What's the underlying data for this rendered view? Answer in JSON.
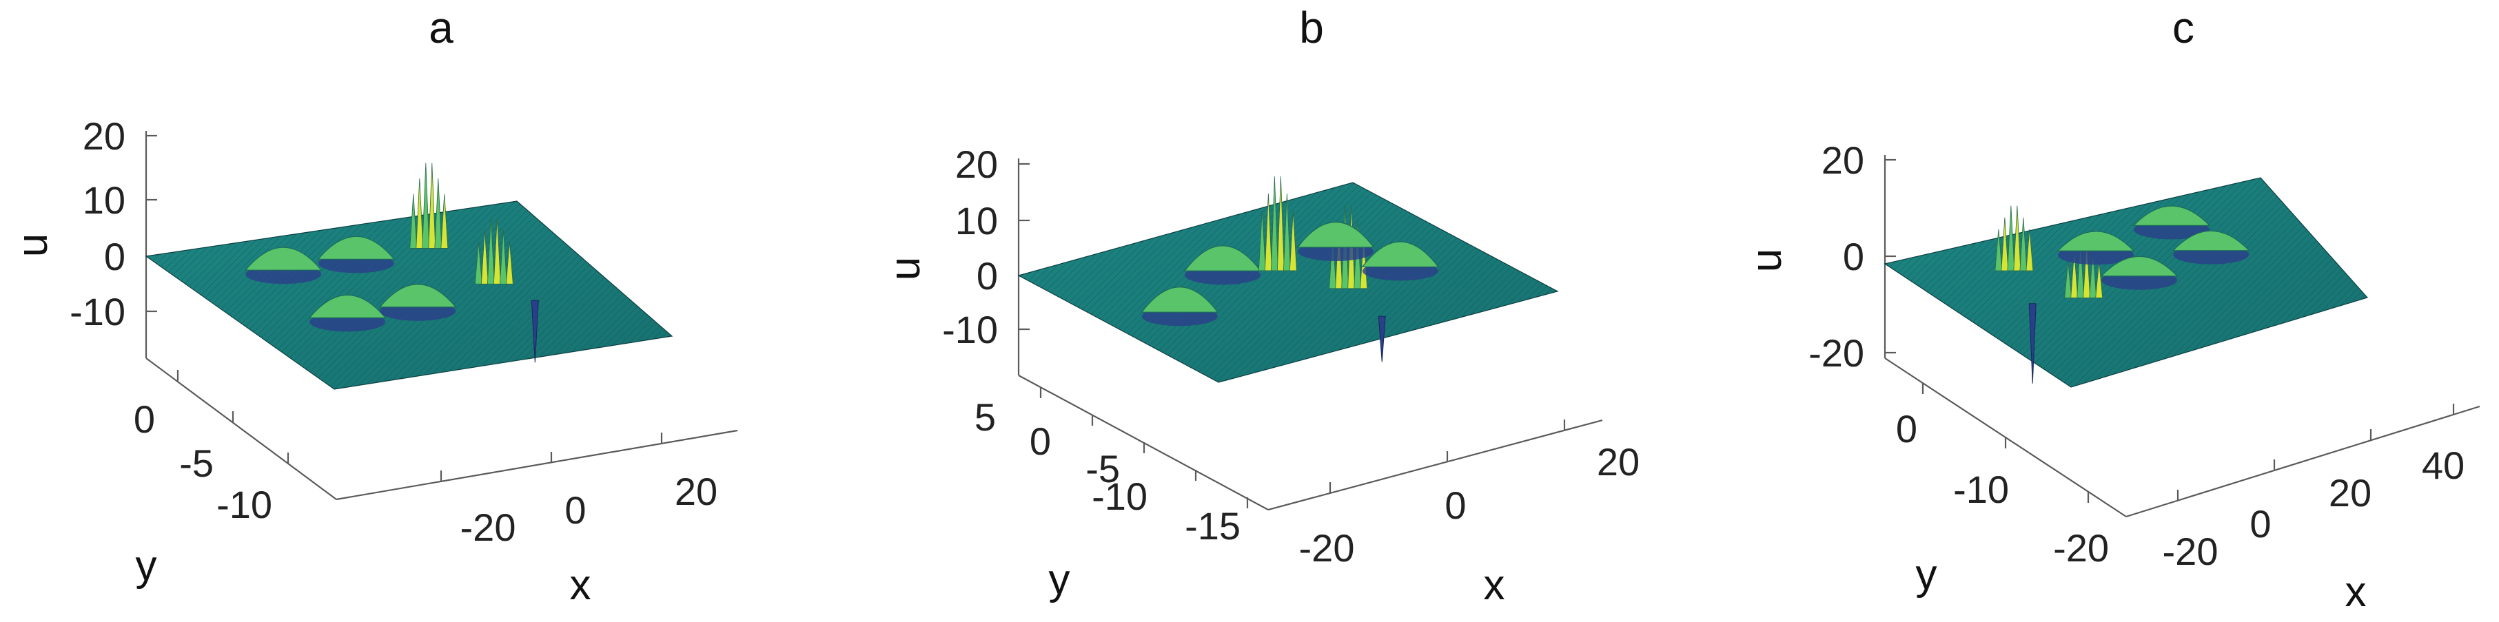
{
  "colors": {
    "plane": "#1f8a86",
    "plane_dark": "#0f5f63",
    "peak": "#d6e534",
    "mid": "#5ac46a",
    "trough": "#2a3f8a",
    "axis": "#5a5a5a"
  },
  "chart_data": [
    {
      "type": "surface",
      "title": "a",
      "xlabel": "x",
      "ylabel": "y",
      "zlabel": "u",
      "xticks": [
        "-20",
        "0",
        "20"
      ],
      "yticks": [
        "0",
        "-5",
        "-10"
      ],
      "zticks": [
        "20",
        "10",
        "0",
        "-10"
      ],
      "zlim": [
        -20,
        20
      ],
      "features": [
        {
          "kind": "bump",
          "x": -14,
          "y": -3,
          "amp": 4
        },
        {
          "kind": "bump",
          "x": -14,
          "y": -8,
          "amp": 4
        },
        {
          "kind": "bump",
          "x": -2,
          "y": -3,
          "amp": 4
        },
        {
          "kind": "bump",
          "x": -2,
          "y": -8,
          "amp": 4
        },
        {
          "kind": "spike",
          "x": 10,
          "y": -3,
          "amp": 18
        },
        {
          "kind": "spike",
          "x": 13,
          "y": -7,
          "amp": 14
        },
        {
          "kind": "dip",
          "x": 16,
          "y": -9,
          "amp": -12
        }
      ]
    },
    {
      "type": "surface",
      "title": "b",
      "xlabel": "x",
      "ylabel": "y",
      "zlabel": "u",
      "xticks": [
        "-20",
        "0",
        "20"
      ],
      "yticks": [
        "5",
        "0",
        "-5",
        "-10",
        "-15"
      ],
      "zticks": [
        "20",
        "10",
        "0",
        "-10"
      ],
      "zlim": [
        -15,
        20
      ],
      "features": [
        {
          "kind": "bump",
          "x": -15,
          "y": -6,
          "amp": 4
        },
        {
          "kind": "bump",
          "x": -2,
          "y": -2,
          "amp": 4
        },
        {
          "kind": "spike",
          "x": 4,
          "y": -4,
          "amp": 18
        },
        {
          "kind": "spike",
          "x": 8,
          "y": -9,
          "amp": 16
        },
        {
          "kind": "bump",
          "x": 15,
          "y": -3,
          "amp": 4
        },
        {
          "kind": "bump",
          "x": 18,
          "y": -8,
          "amp": 4
        },
        {
          "kind": "dip",
          "x": 6,
          "y": -14,
          "amp": -8
        }
      ]
    },
    {
      "type": "surface",
      "title": "c",
      "xlabel": "x",
      "ylabel": "y",
      "zlabel": "u",
      "xticks": [
        "-20",
        "0",
        "20",
        "40"
      ],
      "yticks": [
        "0",
        "-10",
        "-20"
      ],
      "zticks": [
        "20",
        "0",
        "-20"
      ],
      "zlim": [
        -25,
        20
      ],
      "features": [
        {
          "kind": "spike",
          "x": -8,
          "y": -5,
          "amp": 16
        },
        {
          "kind": "spike",
          "x": -3,
          "y": -11,
          "amp": 14
        },
        {
          "kind": "bump",
          "x": 8,
          "y": -5,
          "amp": 4
        },
        {
          "kind": "bump",
          "x": 10,
          "y": -10,
          "amp": 4
        },
        {
          "kind": "bump",
          "x": 24,
          "y": -4,
          "amp": 4
        },
        {
          "kind": "bump",
          "x": 26,
          "y": -9,
          "amp": 4
        },
        {
          "kind": "dip",
          "x": -12,
          "y": -10,
          "amp": -18
        }
      ]
    }
  ]
}
